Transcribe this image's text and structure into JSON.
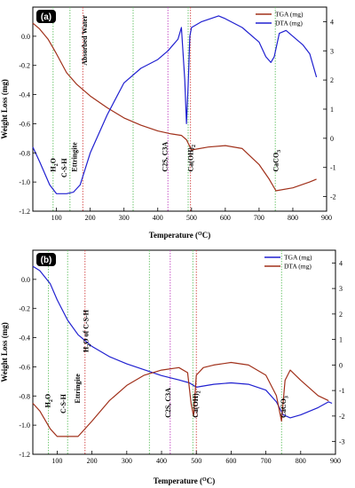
{
  "chart_data": [
    {
      "type": "line",
      "panel_label": "(a)",
      "xlabel": "Temperature (°C)",
      "ylabel": "Weight Loss (mg)",
      "xlim": [
        30,
        900
      ],
      "ylim_left": [
        -1.2,
        0.2
      ],
      "ylim_right": [
        -2.5,
        4.5
      ],
      "x_ticks": [
        100,
        200,
        300,
        400,
        500,
        600,
        700,
        800,
        900
      ],
      "y_ticks_left": [
        0.0,
        -0.2,
        -0.4,
        -0.6,
        -0.8,
        -1.0,
        -1.2
      ],
      "y_ticks_right": [
        -2,
        -1,
        0,
        1,
        2,
        3,
        4
      ],
      "legend_position": "top-right",
      "series": [
        {
          "name": "TGA (mg)",
          "axis": "left",
          "color": "#a0301a",
          "x": [
            30,
            50,
            75,
            100,
            130,
            160,
            200,
            250,
            300,
            350,
            400,
            440,
            470,
            485,
            500,
            550,
            600,
            650,
            700,
            730,
            750,
            800,
            850,
            870
          ],
          "y": [
            0.09,
            0.05,
            -0.02,
            -0.12,
            -0.25,
            -0.33,
            -0.41,
            -0.49,
            -0.56,
            -0.61,
            -0.65,
            -0.67,
            -0.68,
            -0.71,
            -0.78,
            -0.76,
            -0.75,
            -0.77,
            -0.88,
            -0.98,
            -1.06,
            -1.04,
            -1.0,
            -0.98
          ]
        },
        {
          "name": "DTA (mg)",
          "axis": "right",
          "color": "#2020d0",
          "x": [
            30,
            50,
            80,
            100,
            130,
            150,
            170,
            200,
            250,
            300,
            350,
            400,
            430,
            460,
            470,
            480,
            485,
            490,
            495,
            500,
            530,
            580,
            600,
            650,
            700,
            720,
            735,
            745,
            760,
            780,
            800,
            830,
            850,
            870
          ],
          "y": [
            -0.3,
            -0.8,
            -1.6,
            -1.9,
            -1.9,
            -1.85,
            -1.6,
            -0.5,
            0.8,
            1.9,
            2.4,
            2.7,
            3.0,
            3.4,
            3.8,
            2.0,
            0.5,
            1.8,
            3.5,
            3.8,
            4.0,
            4.2,
            4.1,
            3.8,
            3.3,
            2.8,
            2.6,
            2.8,
            3.6,
            3.7,
            3.5,
            3.2,
            2.9,
            2.1
          ]
        }
      ],
      "vertical_lines": [
        {
          "x": 90,
          "color": "#60c060"
        },
        {
          "x": 140,
          "color": "#60c060"
        },
        {
          "x": 178,
          "color": "#d04040"
        },
        {
          "x": 327,
          "color": "#60c060"
        },
        {
          "x": 430,
          "color": "#c040c0"
        },
        {
          "x": 490,
          "color": "#60c060"
        },
        {
          "x": 497,
          "color": "#d04040"
        },
        {
          "x": 748,
          "color": "#60c060"
        }
      ],
      "annotations": [
        {
          "text": "H",
          "sub": "2",
          "tail": "O",
          "x": 97,
          "y": -0.93
        },
        {
          "text": "C-S-H",
          "sub": "",
          "tail": "",
          "x": 130,
          "y": -0.97
        },
        {
          "text": "Ettringite",
          "sub": "",
          "tail": "",
          "x": 160,
          "y": -0.93
        },
        {
          "text": "Absorbed Water",
          "sub": "",
          "tail": "",
          "x": 190,
          "y": -0.2
        },
        {
          "text": "C2S, C3A",
          "sub": "",
          "tail": "",
          "x": 428,
          "y": -0.93
        },
        {
          "text": "Ca(OH)",
          "sub": "2",
          "tail": "",
          "x": 505,
          "y": -0.93
        },
        {
          "text": "CaCO",
          "sub": "3",
          "tail": "",
          "x": 757,
          "y": -0.93
        }
      ]
    },
    {
      "type": "line",
      "panel_label": "(b)",
      "xlabel": "Temperature (°C)",
      "ylabel": "Weight Loss (mg)",
      "xlim": [
        30,
        900
      ],
      "ylim_left": [
        -1.2,
        0.2
      ],
      "ylim_right": [
        -3.5,
        4.5
      ],
      "x_ticks": [
        100,
        200,
        300,
        400,
        500,
        600,
        700,
        800,
        900
      ],
      "y_ticks_left": [
        0.0,
        -0.2,
        -0.4,
        -0.6,
        -0.8,
        -1.0,
        -1.2
      ],
      "y_ticks_right": [
        -3,
        -2,
        -1,
        0,
        1,
        2,
        3,
        4
      ],
      "legend_position": "top-right",
      "series": [
        {
          "name": "TGA (mg)",
          "axis": "left",
          "color": "#2020d0",
          "x": [
            30,
            50,
            80,
            100,
            130,
            160,
            200,
            250,
            300,
            350,
            400,
            450,
            480,
            500,
            550,
            600,
            650,
            700,
            730,
            750,
            770,
            800,
            850,
            880,
            890
          ],
          "y": [
            0.09,
            0.06,
            -0.03,
            -0.14,
            -0.28,
            -0.38,
            -0.46,
            -0.53,
            -0.58,
            -0.62,
            -0.66,
            -0.69,
            -0.71,
            -0.74,
            -0.72,
            -0.71,
            -0.72,
            -0.76,
            -0.84,
            -0.93,
            -0.95,
            -0.93,
            -0.88,
            -0.84,
            -0.85
          ]
        },
        {
          "name": "DTA (mg)",
          "axis": "right",
          "color": "#a0301a",
          "x": [
            30,
            50,
            80,
            100,
            130,
            160,
            200,
            250,
            300,
            350,
            400,
            450,
            475,
            485,
            492,
            500,
            520,
            550,
            600,
            650,
            700,
            730,
            745,
            755,
            770,
            800,
            850,
            880
          ],
          "y": [
            -1.5,
            -1.8,
            -2.5,
            -2.8,
            -2.8,
            -2.8,
            -2.2,
            -1.4,
            -0.8,
            -0.4,
            -0.2,
            -0.1,
            -0.3,
            -1.5,
            -2.0,
            -0.4,
            -0.1,
            0.0,
            0.1,
            0.0,
            -0.4,
            -1.2,
            -2.2,
            -0.6,
            -0.2,
            -0.6,
            -1.2,
            -1.4
          ]
        }
      ],
      "vertical_lines": [
        {
          "x": 75,
          "color": "#60c060"
        },
        {
          "x": 130,
          "color": "#60c060"
        },
        {
          "x": 180,
          "color": "#d04040"
        },
        {
          "x": 365,
          "color": "#60c060"
        },
        {
          "x": 425,
          "color": "#c040c0"
        },
        {
          "x": 490,
          "color": "#60c060"
        },
        {
          "x": 500,
          "color": "#d04040"
        },
        {
          "x": 745,
          "color": "#60c060"
        }
      ],
      "annotations": [
        {
          "text": "H",
          "sub": "2",
          "tail": "O",
          "x": 80,
          "y": -0.88
        },
        {
          "text": "C-S-H",
          "sub": "",
          "tail": "",
          "x": 125,
          "y": -0.92
        },
        {
          "text": "Ettringite",
          "sub": "",
          "tail": "",
          "x": 165,
          "y": -0.85
        },
        {
          "text": "H",
          "sub": "2",
          "tail": "O of C-S-H",
          "x": 190,
          "y": -0.5
        },
        {
          "text": "C2S, C3A",
          "sub": "",
          "tail": "",
          "x": 425,
          "y": -0.95
        },
        {
          "text": "Ca(OH)",
          "sub": "2",
          "tail": "",
          "x": 505,
          "y": -0.95
        },
        {
          "text": "CaCO",
          "sub": "3",
          "tail": "",
          "x": 757,
          "y": -0.95
        }
      ]
    }
  ]
}
